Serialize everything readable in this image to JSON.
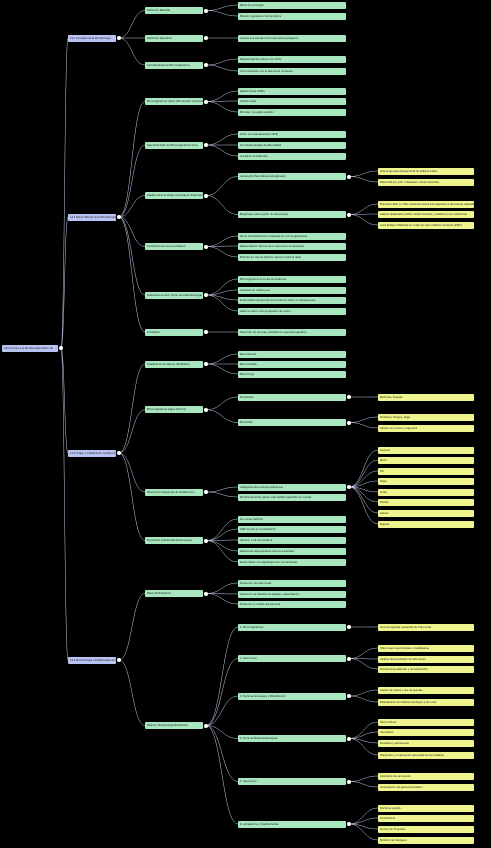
{
  "mindmap": {
    "label": "Introducción a la Microbiología (Tema 14)",
    "children": [
      {
        "label": "14.1 Concepto de la Microbiología",
        "children": [
          {
            "label": "Definición Estándar",
            "children": [
              {
                "label": "Rama de la biología"
              },
              {
                "label": "Estudio organismos microscópicos"
              }
            ]
          },
          {
            "label": "Definición Operativa",
            "children": [
              {
                "label": "Ciencia que estudia microorganismos patógenos"
              }
            ]
          },
          {
            "label": "Características de Microorganismos",
            "children": [
              {
                "label": "Pequeño tamaño (menor de 1mm)"
              },
              {
                "label": "Funcionamiento con la estructura unicelular"
              }
            ]
          }
        ]
      },
      {
        "label": "14.2 Breve Historia de la Microbiología",
        "children": [
          {
            "label": "Microorganismos Vistos (Microscopio Compuesto)",
            "children": [
              {
                "label": "Robert Hooke (1665)"
              },
              {
                "label": "Células vistas"
              },
              {
                "label": "Microbio: concepto acuñado"
              }
            ]
          },
          {
            "label": "Descubrimiento de Microorganismos Vivos",
            "children": [
              {
                "label": "Anton van Leeuwenhoek (1676)"
              },
              {
                "label": "Con lentes simples de alta calidad"
              },
              {
                "label": "Los llamó 'animálculos'"
              }
            ]
          },
          {
            "label": "Debate sobre el Origen (Generación Espontánea vs. Biogénesis)",
            "children": [
              {
                "label": "Generación Espontánea (Abiogénesis)",
                "children": [
                  {
                    "label": "Vida surge espontáneamente de materia inerte"
                  },
                  {
                    "label": "Defendida por John T. Needham (caldos hervidos)"
                  }
                ]
              },
              {
                "label": "Biogénesis (vida a partir de vida previa)",
                "children": [
                  {
                    "label": "Francesco Redi (s. XVII): larvas de mosca solo aparecen si las moscas depositan huevos"
                  },
                  {
                    "label": "Lazzaro Spallanzani (XVIII): Caldos hervidos y sellados no se contaminan"
                  },
                  {
                    "label": "Louis Pasteur: Matraces en cuello de cisne refutaron la teoría (1861)"
                  }
                ]
              }
            ]
          },
          {
            "label": "Contribuciones de Louis Pasteur",
            "children": [
              {
                "label": "Teoría de fermentación (realizada por microorganismos)"
              },
              {
                "label": "Pasteurización: técnica de conservación de alimentos"
              },
              {
                "label": "Estudios en ciencia médica: vacuna contra la rabia"
              }
            ]
          },
          {
            "label": "Postulados de Koch (Inicio de la Bacteriología)",
            "children": [
              {
                "label": "Microorganismo en todos los enfermos"
              },
              {
                "label": "Cultivarlo en cultivo puro"
              },
              {
                "label": "Enfermedad reproducida al inocular el cultivo en huésped sano"
              },
              {
                "label": "Aislar el mismo microorganismo de nuevo"
              }
            ]
          },
          {
            "label": "Actualidad",
            "children": [
              {
                "label": "Desarrollo de vacunas, antibióticos, ingeniería genética"
              }
            ]
          }
        ]
      },
      {
        "label": "14.3 Origen y Clasificación de Microorganismos",
        "children": [
          {
            "label": "Clasificación por Reinos (Whittaker)",
            "children": [
              {
                "label": "Reino Monera"
              },
              {
                "label": "Reino Protista"
              },
              {
                "label": "Reino Fungi"
              }
            ]
          },
          {
            "label": "Microorganismos según Dominio",
            "children": [
              {
                "label": "Procariotas",
                "children": [
                  {
                    "label": "Bacterias, Arqueas"
                  }
                ]
              },
              {
                "label": "Eucariotas",
                "children": [
                  {
                    "label": "Protozoos, Hongos, Algas"
                  },
                  {
                    "label": "Células con núcleo y organelos"
                  }
                ]
              }
            ]
          },
          {
            "label": "Taxonomía (Categorías de Clasificación)",
            "children": [
              {
                "label": "Categorías taxonómicas jerárquicas",
                "children": [
                  {
                    "label": "Dominio"
                  },
                  {
                    "label": "Reino"
                  },
                  {
                    "label": "Filo"
                  },
                  {
                    "label": "Clase"
                  },
                  {
                    "label": "Orden"
                  },
                  {
                    "label": "Familia"
                  },
                  {
                    "label": "Género"
                  },
                  {
                    "label": "Especie"
                  }
                ]
              },
              {
                "label": "Nombre binomial: género más epíteto específico en cursiva"
              }
            ]
          },
          {
            "label": "Procariotas (Células Bacteria/Arquea)",
            "children": [
              {
                "label": "Sin núcleo definido"
              },
              {
                "label": "ADN circular en el citoplasma"
              },
              {
                "label": "Tamaño: 1-10 micrómetros"
              },
              {
                "label": "Ribosomas más pequeños que los eucariotas"
              },
              {
                "label": "Pared celular con peptidoglucano (en bacterias)"
              }
            ]
          }
        ]
      },
      {
        "label": "14.4 Microbiología y Profesionales de Enfermería",
        "children": [
          {
            "label": "Papel del Enfermero",
            "children": [
              {
                "label": "Prevención de infecciones"
              },
              {
                "label": "Aplicación de medidas de asepsia y esterilización"
              },
              {
                "label": "Protección y cuidado del paciente"
              }
            ]
          },
          {
            "label": "Relación Microbiología-Enfermería",
            "children": [
              {
                "label": "1. Microorganismos",
                "children": [
                  {
                    "label": "Conocer agentes causantes de infecciones"
                  }
                ]
              },
              {
                "label": "2. Infecciones",
                "children": [
                  {
                    "label": "Infecciones nosocomiales o hospitalarias"
                  },
                  {
                    "label": "Cadena de transmisión de infecciones"
                  },
                  {
                    "label": "Precauciones estándar y de aislamiento"
                  }
                ]
              },
              {
                "label": "3. Técnicas de Asepsia y Esterilización",
                "children": [
                  {
                    "label": "Lavado de manos y uso de guantes"
                  },
                  {
                    "label": "Esterilización de material quirúrgico y de curas"
                  }
                ]
              },
              {
                "label": "4. Toma de Muestras Biológicas",
                "children": [
                  {
                    "label": "Hemocultivos"
                  },
                  {
                    "label": "Urocultivos"
                  },
                  {
                    "label": "Exudados y secreciones"
                  },
                  {
                    "label": "Transporte y conservación adecuada de las muestras"
                  }
                ]
              },
              {
                "label": "5. Vacunación",
                "children": [
                  {
                    "label": "Calendario de vacunación"
                  },
                  {
                    "label": "Inmunización del personal sanitario"
                  }
                ]
              },
              {
                "label": "6. Antisépticos y Desinfectantes",
                "children": [
                  {
                    "label": "Povidona yodada"
                  },
                  {
                    "label": "Clorhexidina"
                  },
                  {
                    "label": "Alcohol de 70 grados"
                  },
                  {
                    "label": "Peróxido de hidrógeno"
                  }
                ]
              }
            ]
          }
        ]
      }
    ]
  },
  "colors": {
    "background": "#000000",
    "connector": "#c9d2f0",
    "root_fill": "#b9c3f3",
    "branch_fill": "#a7e6bf",
    "leaf_fill": "#eef58c"
  }
}
